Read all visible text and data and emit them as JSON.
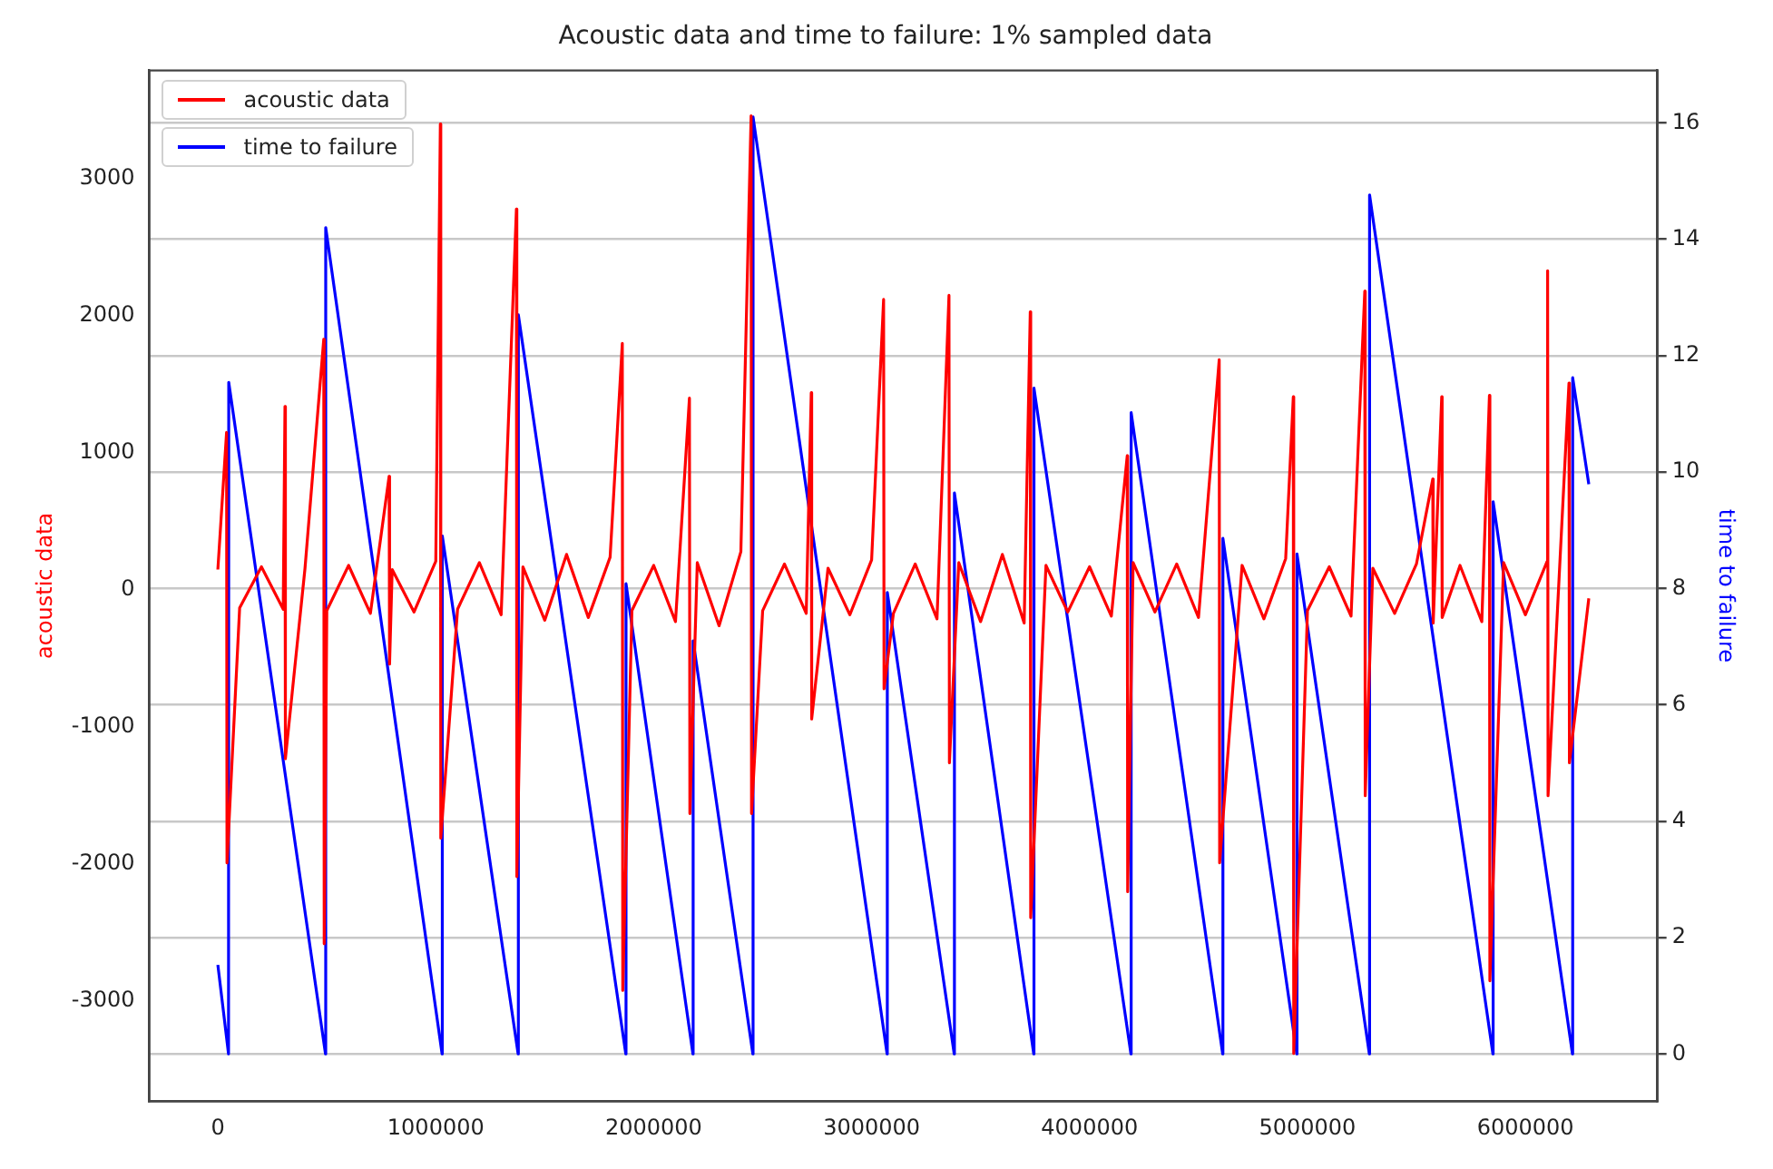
{
  "chart_data": {
    "type": "line",
    "title": "Acoustic data and time to failure: 1% sampled data",
    "ylabel": "acoustic data",
    "y2label": "time to failure",
    "xlim": [
      -314573,
      6606028
    ],
    "xticks": [
      0,
      1000000,
      2000000,
      3000000,
      4000000,
      5000000,
      6000000
    ],
    "ylim": [
      -3728,
      3791
    ],
    "yticks": [
      -3000,
      -2000,
      -1000,
      0,
      1000,
      2000,
      3000
    ],
    "y2lim": [
      -0.81,
      16.9
    ],
    "y2ticks": [
      0,
      2,
      4,
      6,
      8,
      10,
      12,
      14,
      16
    ],
    "grid": "y2",
    "legend": "top left",
    "marker": "none",
    "line_style": "solid",
    "series": [
      {
        "name": "acoustic data",
        "color": "#ff0000",
        "axis": "y",
        "x": [
          0,
          40000,
          42000,
          100000,
          200000,
          300000,
          308000,
          310000,
          400000,
          486000,
          488000,
          500000,
          600000,
          700000,
          786000,
          788000,
          800000,
          900000,
          1000000,
          1021000,
          1023000,
          1100000,
          1200000,
          1300000,
          1370000,
          1372000,
          1400000,
          1500000,
          1600000,
          1700000,
          1800000,
          1856000,
          1858000,
          1900000,
          2000000,
          2100000,
          2164000,
          2166000,
          2200000,
          2300000,
          2400000,
          2447000,
          2449000,
          2500000,
          2600000,
          2700000,
          2723000,
          2725000,
          2800000,
          2900000,
          3000000,
          3055000,
          3057000,
          3100000,
          3200000,
          3300000,
          3355000,
          3357000,
          3400000,
          3500000,
          3600000,
          3700000,
          3728000,
          3730000,
          3800000,
          3900000,
          4000000,
          4100000,
          4173000,
          4175000,
          4200000,
          4300000,
          4400000,
          4500000,
          4595000,
          4597000,
          4700000,
          4800000,
          4900000,
          4935000,
          4937000,
          5000000,
          5100000,
          5200000,
          5263000,
          5265000,
          5300000,
          5400000,
          5500000,
          5575000,
          5577000,
          5616000,
          5618000,
          5700000,
          5800000,
          5835000,
          5837000,
          5900000,
          6000000,
          6100000,
          6102000,
          6104000,
          6200000,
          6202000,
          6291000
        ],
        "values": [
          150,
          1150,
          -1990,
          -130,
          170,
          -140,
          1340,
          -1230,
          160,
          1830,
          -2580,
          -150,
          180,
          -170,
          830,
          -540,
          150,
          -160,
          210,
          3400,
          -1810,
          -140,
          200,
          -180,
          2780,
          -2090,
          170,
          -220,
          260,
          -200,
          240,
          1800,
          -2920,
          -150,
          180,
          -230,
          1400,
          -1630,
          200,
          -260,
          280,
          3460,
          -1630,
          -150,
          190,
          -170,
          1440,
          -940,
          160,
          -180,
          220,
          2120,
          -720,
          -170,
          190,
          -210,
          2150,
          -1260,
          200,
          -230,
          260,
          -240,
          2030,
          -2390,
          180,
          -160,
          170,
          -190,
          980,
          -2200,
          200,
          -160,
          190,
          -200,
          1680,
          -1990,
          180,
          -210,
          230,
          1410,
          -3380,
          -150,
          170,
          -190,
          2180,
          -1500,
          160,
          -170,
          190,
          810,
          -240,
          1410,
          -200,
          180,
          -230,
          1420,
          -2850,
          200,
          -180,
          210,
          2330,
          -1500,
          1510,
          -1260,
          -60
        ]
      },
      {
        "name": "time to failure",
        "color": "#0000ff",
        "axis": "y2",
        "x": [
          0,
          49000,
          50000,
          494000,
          495000,
          1029000,
          1030000,
          1378000,
          1379000,
          1872000,
          1873000,
          2180000,
          2181000,
          2455000,
          2456000,
          3071000,
          3072000,
          3379000,
          3380000,
          3744000,
          3745000,
          4190000,
          4191000,
          4611000,
          4612000,
          4951000,
          4952000,
          5284000,
          5285000,
          5851000,
          5852000,
          6216000,
          6217000,
          6291000
        ],
        "values": [
          1.53,
          0,
          11.54,
          0,
          14.2,
          0,
          8.9,
          0,
          12.7,
          0,
          8.08,
          0,
          7.1,
          0,
          16.1,
          0,
          7.93,
          0,
          9.64,
          0,
          11.44,
          0,
          11.02,
          0,
          8.86,
          0,
          8.59,
          0,
          14.76,
          0,
          9.49,
          0,
          11.62,
          9.79
        ]
      }
    ]
  }
}
